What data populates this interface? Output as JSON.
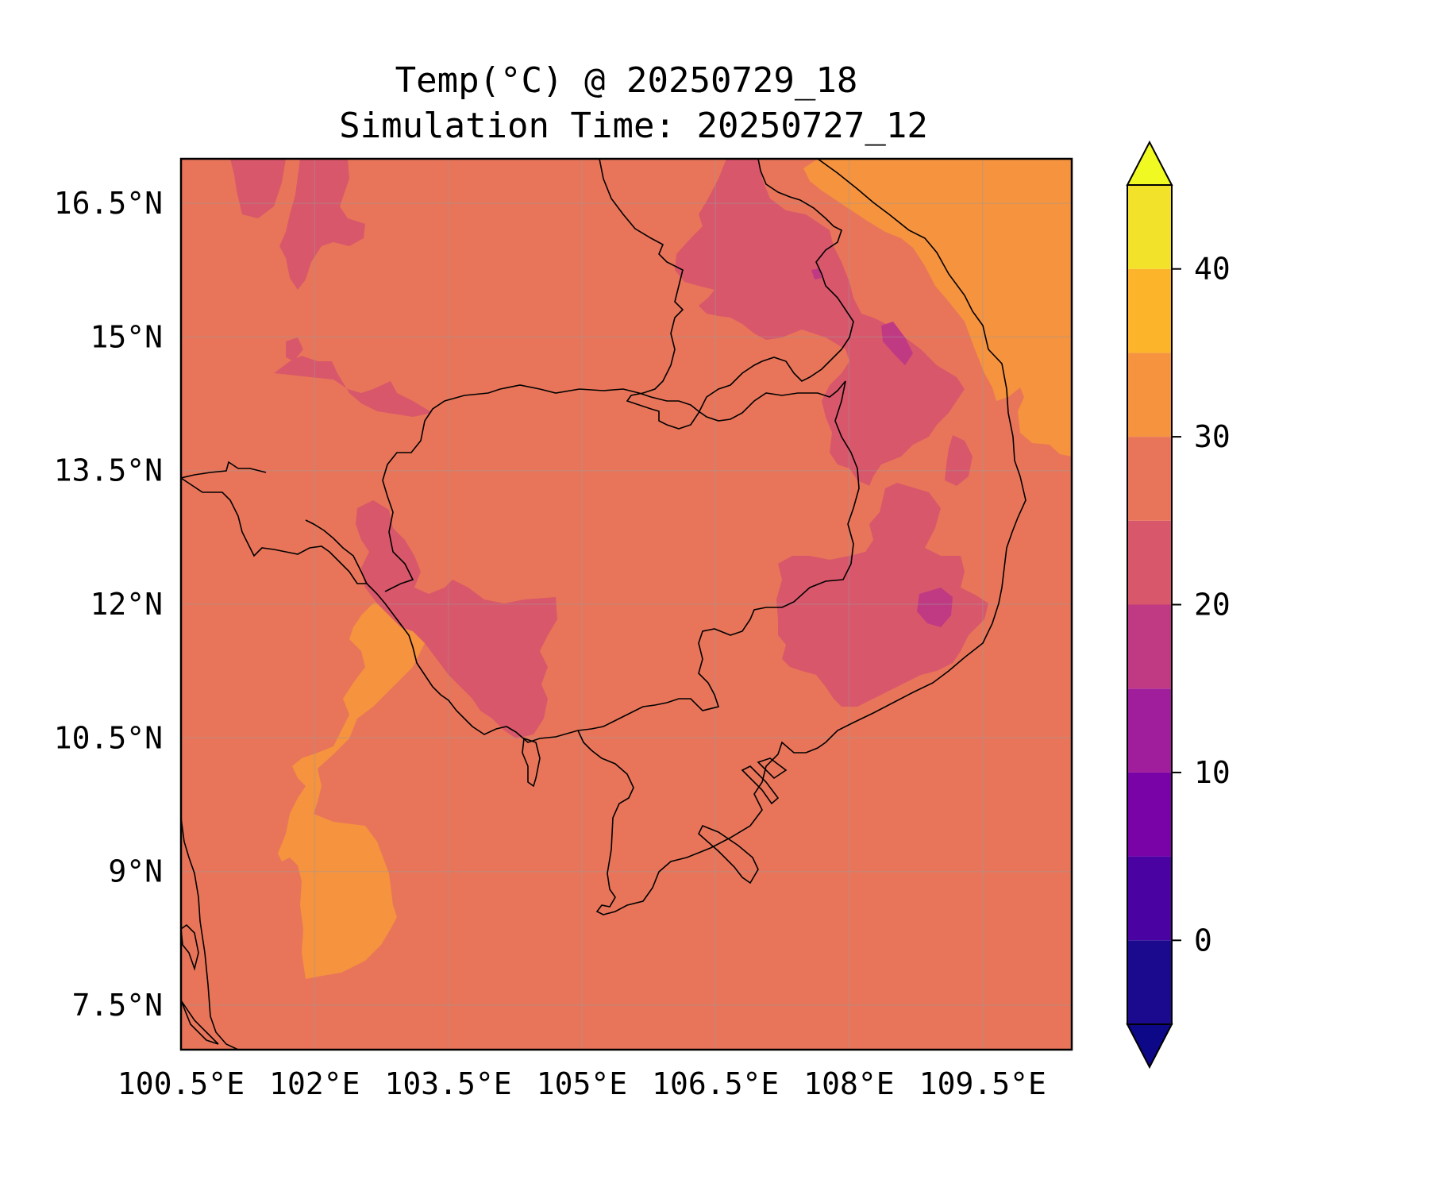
{
  "title": {
    "line1": "Temp(°C) @ 20250729_18",
    "line2": "Simulation Time: 20250727_12"
  },
  "map": {
    "lon_range": [
      100.5,
      110.5
    ],
    "lat_range": [
      7.0,
      17.0
    ],
    "x_ticks": [
      {
        "lon": 100.5,
        "label": "100.5°E"
      },
      {
        "lon": 102.0,
        "label": "102°E"
      },
      {
        "lon": 103.5,
        "label": "103.5°E"
      },
      {
        "lon": 105.0,
        "label": "105°E"
      },
      {
        "lon": 106.5,
        "label": "106.5°E"
      },
      {
        "lon": 108.0,
        "label": "108°E"
      },
      {
        "lon": 109.5,
        "label": "109.5°E"
      }
    ],
    "y_ticks": [
      {
        "lat": 16.5,
        "label": "16.5°N"
      },
      {
        "lat": 15.0,
        "label": "15°N"
      },
      {
        "lat": 13.5,
        "label": "13.5°N"
      },
      {
        "lat": 12.0,
        "label": "12°N"
      },
      {
        "lat": 10.5,
        "label": "10.5°N"
      },
      {
        "lat": 9.0,
        "label": "9°N"
      },
      {
        "lat": 7.5,
        "label": "7.5°N"
      }
    ],
    "gridlines": true,
    "background_level_color": "#e8755a"
  },
  "colorbar": {
    "position": "right",
    "extend": "both",
    "levels": [
      -5,
      0,
      5,
      10,
      15,
      20,
      25,
      30,
      35,
      40,
      45
    ],
    "colors": [
      "#1b0a8e",
      "#4b02a3",
      "#7a03a8",
      "#a01e9c",
      "#c03a83",
      "#d8576b",
      "#e8755a",
      "#f5933f",
      "#fcb42a",
      "#f2e229"
    ],
    "under_color": "#0d0887",
    "over_color": "#f0f921",
    "ticks": [
      {
        "value": 0,
        "label": "0"
      },
      {
        "value": 10,
        "label": "10"
      },
      {
        "value": 20,
        "label": "20"
      },
      {
        "value": 30,
        "label": "30"
      },
      {
        "value": 40,
        "label": "40"
      }
    ]
  }
}
